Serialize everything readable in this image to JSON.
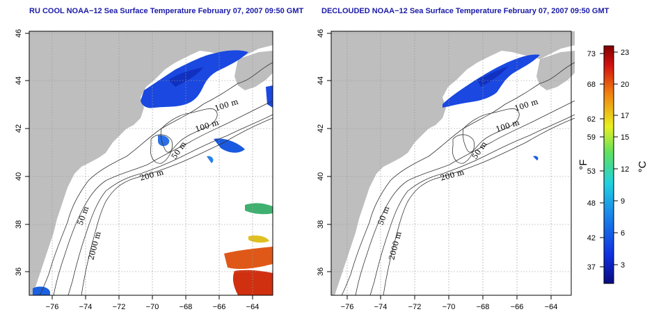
{
  "panels": [
    {
      "title": "RU COOL NOAA−12 Sea Surface Temperature February 07, 2007 09:50 GMT",
      "contour_labels": [
        "100 m",
        "100 m",
        "50 m",
        "200 m",
        "50 m",
        "2000 m"
      ]
    },
    {
      "title": "DECLOUDED NOAA−12 Sea Surface Temperature February 07, 2007 09:50 GMT",
      "contour_labels": [
        "100 m",
        "100 m",
        "50 m",
        "200 m",
        "50 m",
        "2000 m"
      ]
    }
  ],
  "axes": {
    "x_ticks": [
      "−76",
      "−74",
      "−72",
      "−70",
      "−68",
      "−66",
      "−64"
    ],
    "y_ticks": [
      "46",
      "44",
      "42",
      "40",
      "38",
      "36"
    ]
  },
  "colorbar": {
    "f_label": "°F",
    "c_label": "°C",
    "f_ticks": [
      "73",
      "68",
      "62",
      "59",
      "53",
      "48",
      "42",
      "37"
    ],
    "c_ticks": [
      "23",
      "20",
      "17",
      "15",
      "12",
      "9",
      "6",
      "3"
    ]
  },
  "colors": {
    "land": "#bebebe",
    "ocean": "#ffffff",
    "cold": "#1a3ad8",
    "warm": "#e04010"
  }
}
